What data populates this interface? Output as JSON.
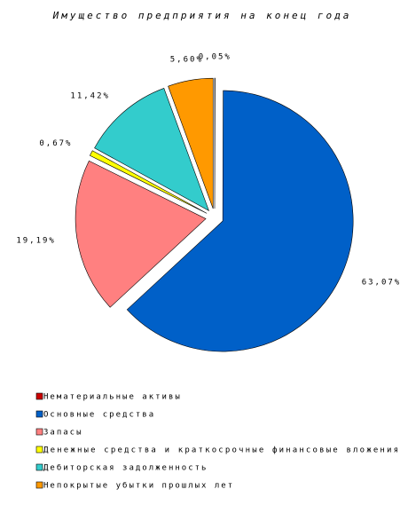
{
  "chart_data": {
    "type": "pie",
    "title": "Имущество предприятия на конец года",
    "categories": [
      "Нематериальные активы",
      "Основные средства",
      "Запасы",
      "Денежные средства и краткосрочные финансовые вложения",
      "Дебиторская задолженность",
      "Непокрытые убытки прошлых лет"
    ],
    "values": [
      0.05,
      63.07,
      19.19,
      0.67,
      11.42,
      5.6
    ],
    "value_labels": [
      "0,05%",
      "63,07%",
      "19,19%",
      "0,67%",
      "11,42%",
      "5,60%"
    ],
    "colors": [
      "#cc0000",
      "#0060c8",
      "#ff8080",
      "#ffff00",
      "#33cccc",
      "#ff9900"
    ]
  }
}
